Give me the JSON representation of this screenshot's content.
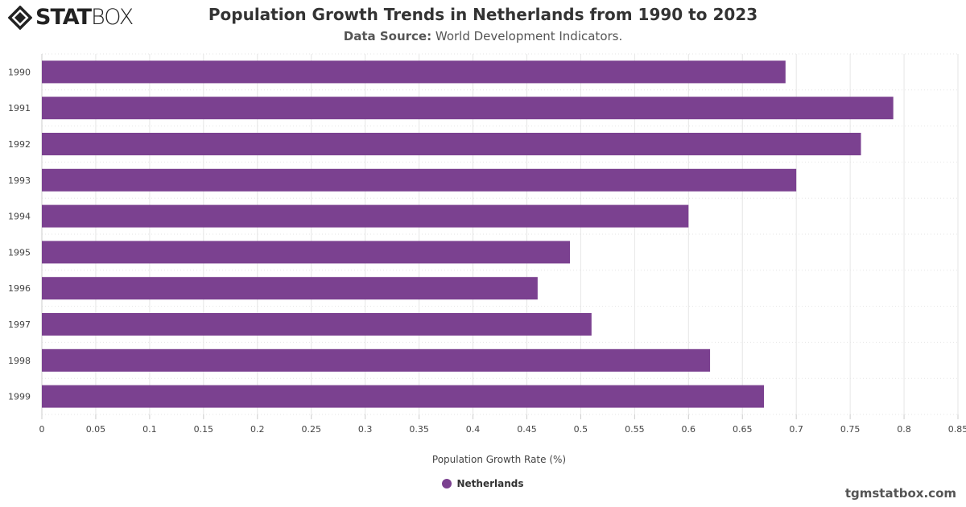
{
  "logo": {
    "text_bold": "STAT",
    "text_thin": "BOX"
  },
  "header": {
    "title": "Population Growth Trends in Netherlands from 1990 to 2023",
    "subtitle_label": "Data Source:",
    "subtitle_value": "World Development Indicators."
  },
  "credit": "tgmstatbox.com",
  "colors": {
    "bar": "#7b4190",
    "grid": "#e6e6e6"
  },
  "chart_data": {
    "type": "bar",
    "orientation": "horizontal",
    "categories": [
      "1990",
      "1991",
      "1992",
      "1993",
      "1994",
      "1995",
      "1996",
      "1997",
      "1998",
      "1999"
    ],
    "series": [
      {
        "name": "Netherlands",
        "values": [
          0.69,
          0.79,
          0.76,
          0.7,
          0.6,
          0.49,
          0.46,
          0.51,
          0.62,
          0.67
        ]
      }
    ],
    "xlabel": "Population Growth Rate (%)",
    "ylabel": "",
    "xlim": [
      0,
      0.85
    ],
    "xticks": [
      "0",
      "0.05",
      "0.1",
      "0.15",
      "0.2",
      "0.25",
      "0.3",
      "0.35",
      "0.4",
      "0.45",
      "0.5",
      "0.55",
      "0.6",
      "0.65",
      "0.7",
      "0.75",
      "0.8",
      "0.85"
    ],
    "grid": true,
    "legend_position": "bottom"
  }
}
